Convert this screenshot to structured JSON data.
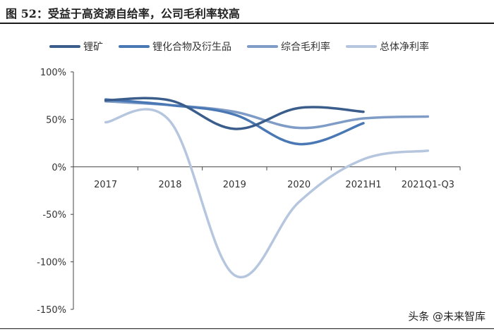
{
  "title": "图 52：受益于高资源自给率，公司毛利率较高",
  "watermark": "头条 @未来智库",
  "colors": {
    "lithium_mine": "#3a5d8c",
    "lithium_compounds": "#4a78b5",
    "gross_margin": "#7f9cc6",
    "net_margin": "#b6c6df"
  },
  "chart_data": {
    "type": "line",
    "categories": [
      "2017",
      "2018",
      "2019",
      "2020",
      "2021H1",
      "2021Q1-Q3"
    ],
    "ylim": [
      -150,
      100
    ],
    "yticks": [
      100,
      50,
      0,
      -50,
      -100,
      -150
    ],
    "ytick_labels": [
      "100%",
      "50%",
      "0%",
      "-50%",
      "-100%",
      "-150%"
    ],
    "grid": false,
    "legend_position": "top",
    "series": [
      {
        "name": "锂矿",
        "color_key": "lithium_mine",
        "values": [
          70,
          70,
          40,
          62,
          58,
          null
        ]
      },
      {
        "name": "锂化合物及衍生品",
        "color_key": "lithium_compounds",
        "values": [
          71,
          65,
          55,
          24,
          46,
          null
        ]
      },
      {
        "name": "综合毛利率",
        "color_key": "gross_margin",
        "values": [
          69,
          65,
          58,
          41,
          51,
          53
        ]
      },
      {
        "name": "总体净利率",
        "color_key": "net_margin",
        "values": [
          47,
          48,
          -114,
          -37,
          8,
          17
        ]
      }
    ]
  }
}
